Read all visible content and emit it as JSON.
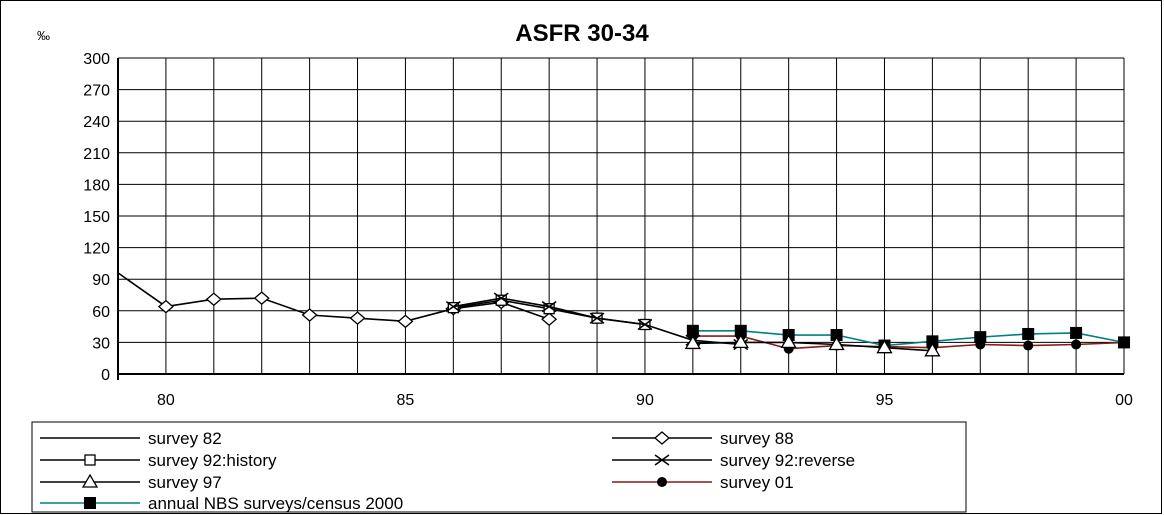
{
  "chart_data": {
    "type": "line",
    "title": "ASFR 30-34",
    "unit_label": "‰",
    "xlabel": "",
    "ylabel": "",
    "xlim": [
      1979,
      2000
    ],
    "ylim": [
      0,
      300
    ],
    "y_ticks": [
      0,
      30,
      60,
      90,
      120,
      150,
      180,
      210,
      240,
      270,
      300
    ],
    "x_ticks": [
      {
        "value": 1980,
        "label": "80"
      },
      {
        "value": 1985,
        "label": "85"
      },
      {
        "value": 1990,
        "label": "90"
      },
      {
        "value": 1995,
        "label": "95"
      },
      {
        "value": 2000,
        "label": "00"
      }
    ],
    "grid": "vertical lines every year, horizontal lines every 30",
    "legend_position": "bottom",
    "series": [
      {
        "name": "survey 82",
        "color": "#000000",
        "marker": "none",
        "x": [
          1979,
          1980
        ],
        "y": [
          96,
          64
        ]
      },
      {
        "name": "survey 88",
        "color": "#000000",
        "marker": "open-diamond",
        "x": [
          1980,
          1981,
          1982,
          1983,
          1984,
          1985,
          1986,
          1987,
          1988
        ],
        "y": [
          64,
          71,
          72,
          56,
          53,
          50,
          62,
          68,
          52
        ]
      },
      {
        "name": "survey 92:history",
        "color": "#000000",
        "marker": "open-square",
        "x": [
          1986,
          1987,
          1988,
          1989,
          1990
        ],
        "y": [
          63,
          70,
          62,
          53,
          47
        ]
      },
      {
        "name": "survey 92:reverse",
        "color": "#000000",
        "marker": "x",
        "x": [
          1986,
          1987,
          1988,
          1989,
          1990,
          1991,
          1992
        ],
        "y": [
          64,
          72,
          64,
          53,
          47,
          32,
          28
        ]
      },
      {
        "name": "survey 97",
        "color": "#000000",
        "marker": "open-triangle",
        "x": [
          1991,
          1992,
          1993,
          1994,
          1995,
          1996
        ],
        "y": [
          29,
          30,
          30,
          28,
          25,
          22
        ]
      },
      {
        "name": "survey 01",
        "color": "#8b1a1a",
        "marker": "filled-circle",
        "x": [
          1991,
          1992,
          1993,
          1994,
          1995,
          1996,
          1997,
          1998,
          1999,
          2000
        ],
        "y": [
          36,
          36,
          24,
          27,
          26,
          25,
          28,
          27,
          28,
          30
        ]
      },
      {
        "name": "annual NBS surveys/census 2000",
        "color": "#008080",
        "marker": "filled-square",
        "x": [
          1991,
          1992,
          1993,
          1994,
          1995,
          1996,
          1997,
          1998,
          1999,
          2000
        ],
        "y": [
          41,
          41,
          37,
          37,
          27,
          31,
          35,
          38,
          39,
          30
        ]
      }
    ]
  }
}
